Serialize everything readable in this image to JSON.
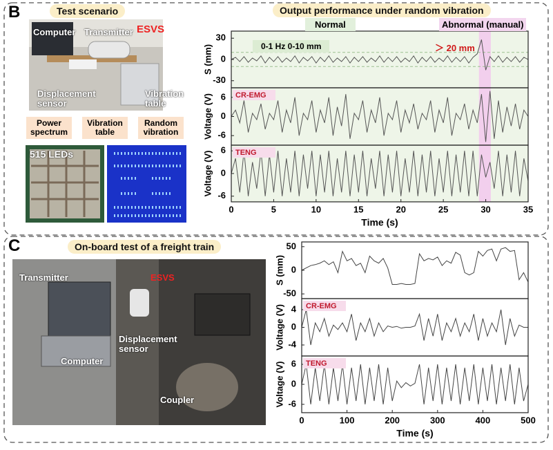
{
  "figure": {
    "panel_b": {
      "letter": "B",
      "photo_title": "Test scenario",
      "photo_labels": [
        "Computer",
        "Transmitter",
        "ESVS",
        "Displacement sensor",
        "Vibration table"
      ],
      "flow": [
        "Power spectrum",
        "Vibration table",
        "Random vibration"
      ],
      "led_label": "515 LEDs"
    },
    "panel_c": {
      "letter": "C",
      "photo_title": "On-board test of a freight train",
      "photo_labels": [
        "Transmitter",
        "ESVS",
        "Displacement sensor",
        "Computer",
        "Coupler"
      ]
    }
  },
  "chart_data": [
    {
      "type": "line",
      "title": "Output performance under random vibration",
      "annotations": {
        "normal": "Normal",
        "abnormal": "Abnormal (manual)",
        "range": "0-1 Hz 0-10 mm",
        "threshold": "＞ 20 mm"
      },
      "plot_background": "#eef5e8",
      "highlight_span": [
        29.2,
        30.6
      ],
      "highlight_color": "#f2c6ee",
      "color": "#555555",
      "xlabel": "Time (s)",
      "xlim": [
        0,
        35
      ],
      "xticks": [
        0,
        5,
        10,
        15,
        20,
        25,
        30,
        35
      ],
      "x": [
        0,
        0.5,
        1,
        1.5,
        2,
        2.5,
        3,
        3.5,
        4,
        4.5,
        5,
        5.5,
        6,
        6.5,
        7,
        7.5,
        8,
        8.5,
        9,
        9.5,
        10,
        10.5,
        11,
        11.5,
        12,
        12.5,
        13,
        13.5,
        14,
        14.5,
        15,
        15.5,
        16,
        16.5,
        17,
        17.5,
        18,
        18.5,
        19,
        19.5,
        20,
        20.5,
        21,
        21.5,
        22,
        22.5,
        23,
        23.5,
        24,
        24.5,
        25,
        25.5,
        26,
        26.5,
        27,
        27.5,
        28,
        28.5,
        29,
        29.5,
        30,
        30.5,
        31,
        31.5,
        32,
        32.5,
        33,
        33.5,
        34,
        34.5,
        35
      ],
      "subplots": [
        {
          "ylabel": "S (mm)",
          "ylim": [
            -40,
            40
          ],
          "yticks": [
            -30,
            0,
            30
          ],
          "reference_lines": [
            10,
            -10
          ],
          "values": [
            0,
            3,
            -3,
            4,
            -4,
            2,
            -2,
            5,
            -5,
            3,
            -3,
            4,
            -4,
            2,
            -3,
            5,
            -5,
            3,
            -2,
            4,
            -5,
            3,
            -3,
            5,
            -4,
            2,
            -3,
            4,
            -5,
            3,
            -3,
            4,
            -4,
            2,
            -3,
            5,
            -4,
            3,
            -3,
            4,
            -4,
            2,
            -3,
            5,
            -5,
            3,
            -3,
            4,
            -4,
            2,
            -3,
            5,
            -4,
            3,
            -3,
            4,
            -5,
            3,
            8,
            28,
            -15,
            4,
            -3,
            5,
            -4,
            3,
            -3,
            4,
            -4,
            3,
            0
          ]
        },
        {
          "ylabel": "Voltage (V)",
          "label": "CR-EMG",
          "ylim": [
            -9,
            9
          ],
          "yticks": [
            -6,
            0,
            6
          ],
          "values": [
            0,
            2,
            -2,
            5,
            -5,
            1,
            -1,
            4,
            -4,
            1,
            -1,
            5,
            -5,
            2,
            -2,
            6,
            -6,
            1,
            -1,
            5,
            -5,
            2,
            -2,
            6,
            -6,
            3,
            -3,
            7,
            -7,
            1,
            -1,
            5,
            -5,
            2,
            -2,
            6,
            -6,
            1,
            -1,
            5,
            -5,
            2,
            -2,
            4,
            -4,
            1,
            -1,
            5,
            -5,
            2,
            -2,
            6,
            -6,
            1,
            -1,
            4,
            -4,
            2,
            -2,
            7,
            -8,
            8,
            -7,
            5,
            -5,
            3,
            -3,
            4,
            -4,
            2,
            0
          ]
        },
        {
          "ylabel": "Voltage (V)",
          "label": "TENG",
          "ylim": [
            -7.5,
            7.5
          ],
          "yticks": [
            -6,
            0,
            6
          ],
          "values": [
            0,
            4,
            -5,
            6,
            -6,
            3,
            -4,
            6,
            -6,
            5,
            -5,
            6,
            -6,
            4,
            -5,
            6,
            -6,
            5,
            -4,
            6,
            -6,
            5,
            -5,
            6,
            -6,
            4,
            -5,
            6,
            -6,
            5,
            -5,
            6,
            -6,
            4,
            -4,
            6,
            -6,
            5,
            -5,
            6,
            -6,
            4,
            -5,
            6,
            -6,
            5,
            -5,
            6,
            -6,
            4,
            -5,
            6,
            -6,
            5,
            -5,
            6,
            -6,
            6,
            -6,
            5,
            -1,
            3,
            -4,
            6,
            -6,
            5,
            -5,
            6,
            -6,
            4,
            -2
          ]
        }
      ]
    },
    {
      "type": "line",
      "plot_background": "#ffffff",
      "color": "#444444",
      "xlabel": "Time (s)",
      "xlim": [
        0,
        500
      ],
      "xticks": [
        0,
        100,
        200,
        300,
        400,
        500
      ],
      "x": [
        0,
        10,
        20,
        30,
        40,
        50,
        60,
        70,
        80,
        90,
        100,
        110,
        120,
        130,
        140,
        150,
        160,
        170,
        180,
        190,
        200,
        210,
        220,
        230,
        240,
        250,
        260,
        270,
        280,
        290,
        300,
        310,
        320,
        330,
        340,
        350,
        360,
        370,
        380,
        390,
        400,
        410,
        420,
        430,
        440,
        450,
        460,
        470,
        480,
        490,
        500
      ],
      "subplots": [
        {
          "ylabel": "S (mm)",
          "ylim": [
            -60,
            60
          ],
          "yticks": [
            -50,
            0,
            50
          ],
          "values": [
            0,
            5,
            10,
            12,
            15,
            20,
            12,
            18,
            -5,
            40,
            20,
            25,
            10,
            15,
            -5,
            30,
            20,
            15,
            25,
            5,
            -30,
            -30,
            -28,
            -30,
            -30,
            -28,
            35,
            20,
            25,
            22,
            28,
            10,
            20,
            15,
            38,
            32,
            -5,
            -10,
            -5,
            40,
            30,
            42,
            45,
            20,
            45,
            48,
            40,
            42,
            -20,
            -5,
            -25
          ]
        },
        {
          "ylabel": "Voltage (V)",
          "label": "CR-EMG",
          "ylim": [
            -6.5,
            6.5
          ],
          "yticks": [
            -4,
            0,
            4
          ],
          "values": [
            0,
            4,
            -4,
            1,
            -1,
            2,
            -2,
            0.5,
            -0.5,
            1,
            -1,
            3,
            -3,
            1,
            -1,
            2,
            -2,
            1,
            -1,
            0.3,
            0,
            0.2,
            -0.2,
            0,
            0,
            0.3,
            3,
            -3,
            2,
            -2,
            3,
            -3,
            1,
            -1,
            2,
            -2,
            1,
            -1,
            3,
            -3,
            2,
            -2,
            1,
            -1,
            4,
            -4,
            2,
            -2,
            0.5,
            0,
            0
          ]
        },
        {
          "ylabel": "Voltage (V)",
          "label": "TENG",
          "ylim": [
            -8.5,
            8.5
          ],
          "yticks": [
            -6,
            0,
            6
          ],
          "values": [
            0,
            6,
            -6,
            5,
            -5,
            6,
            -6,
            5,
            -5,
            6,
            -6,
            5,
            -5,
            6,
            -6,
            5,
            -5,
            6,
            -6,
            5,
            -5,
            1,
            -1,
            0.5,
            -0.5,
            0.3,
            6,
            -6,
            5,
            -5,
            6,
            -6,
            5,
            -5,
            6,
            -6,
            5,
            -5,
            6,
            -6,
            5,
            -5,
            6,
            -6,
            5,
            -5,
            6,
            -6,
            5,
            -5,
            0
          ]
        }
      ]
    }
  ]
}
